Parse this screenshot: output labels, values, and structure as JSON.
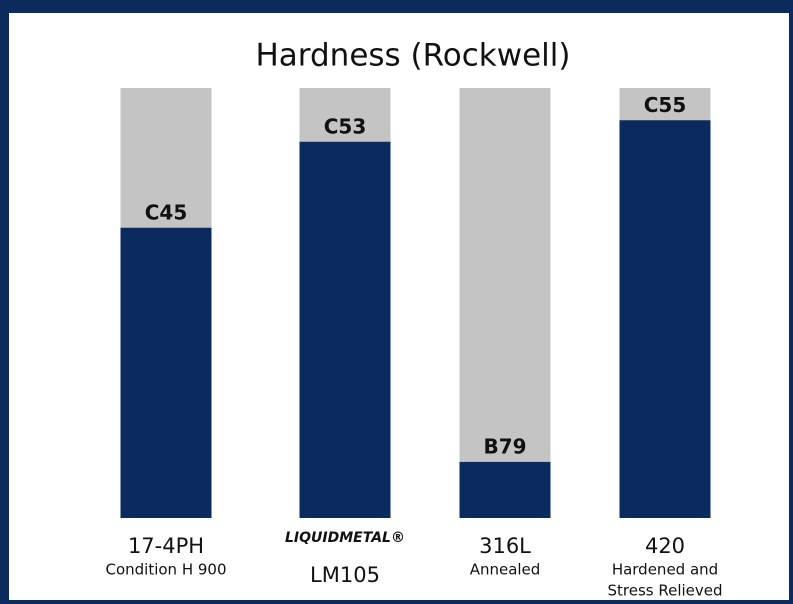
{
  "chart_data": {
    "type": "bar",
    "title": "Hardness (Rockwell)",
    "categories": [
      "17-4PH",
      "LM105",
      "316L",
      "420"
    ],
    "category_notes": [
      [
        "Condition H 900"
      ],
      [],
      [
        "Annealed"
      ],
      [
        "Hardened and",
        "Stress Relieved"
      ]
    ],
    "logos": [
      null,
      "LIQUIDMETAL®",
      null,
      null
    ],
    "values": [
      45,
      53,
      79,
      55
    ],
    "value_labels": [
      "C45",
      "C53",
      "B79",
      "C55"
    ],
    "value_scales": [
      "C",
      "C",
      "B",
      "C"
    ],
    "scale_limits": {
      "C": [
        18,
        58
      ],
      "B": [
        70,
        139
      ]
    },
    "color": "#0b2a5e",
    "background_color": "#c4c4c4"
  }
}
